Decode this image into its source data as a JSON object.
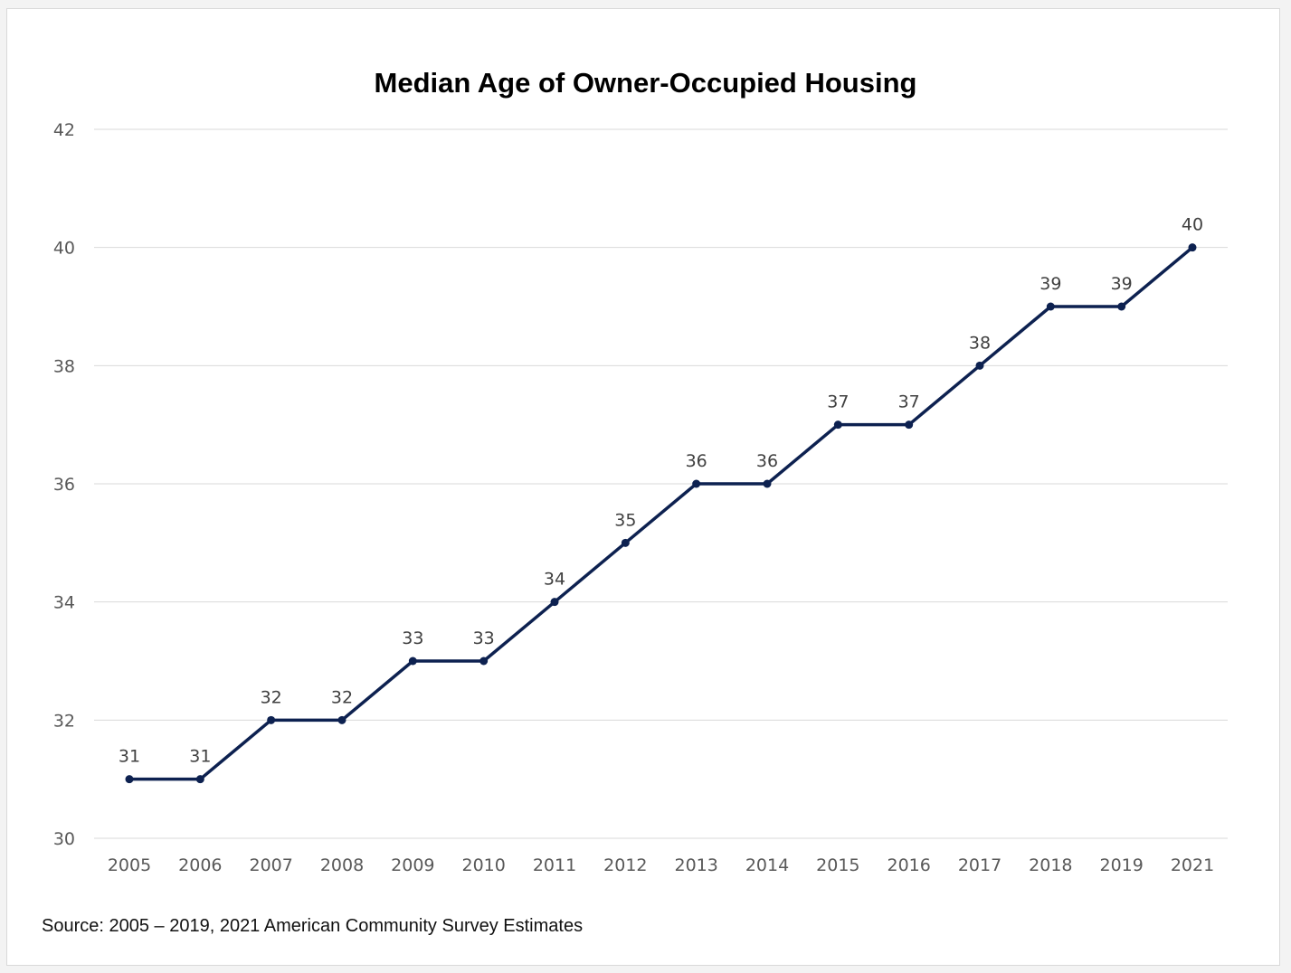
{
  "chart_data": {
    "type": "line",
    "title": "Median Age of Owner-Occupied Housing",
    "xlabel": "",
    "ylabel": "",
    "categories": [
      "2005",
      "2006",
      "2007",
      "2008",
      "2009",
      "2010",
      "2011",
      "2012",
      "2013",
      "2014",
      "2015",
      "2016",
      "2017",
      "2018",
      "2019",
      "2021"
    ],
    "series": [
      {
        "values": [
          31,
          31,
          32,
          32,
          33,
          33,
          34,
          35,
          36,
          36,
          37,
          37,
          38,
          39,
          39,
          40
        ]
      }
    ],
    "ylim": [
      30,
      42
    ],
    "yticks": [
      30,
      32,
      34,
      36,
      38,
      40,
      42
    ],
    "grid": true,
    "data_labels": true,
    "line_color": "#0d2150",
    "grid_color": "#d9d9d9"
  },
  "source_note": "Source: 2005 – 2019, 2021 American Community Survey Estimates"
}
